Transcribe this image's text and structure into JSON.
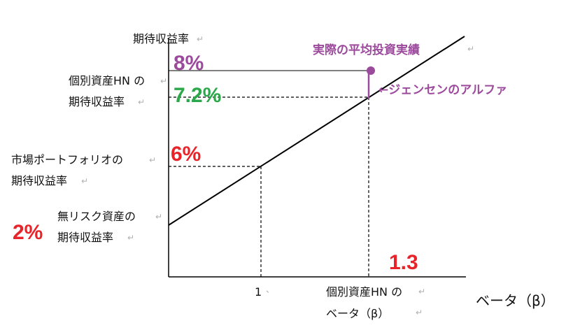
{
  "labels": {
    "y_axis_title": "期待収益率",
    "hn_label_line1": "個別資産HN の",
    "hn_label_line2": "期待収益率",
    "market_label_line1": "市場ポートフォリオの",
    "market_label_line2": "期待収益率",
    "riskfree_label_line1": "無リスク資産の",
    "riskfree_label_line2": "期待収益率",
    "x_tick_one": "1",
    "hn_beta_line1": "個別資産HN の",
    "hn_beta_line2": "ベータ（β）",
    "x_axis_title": "ベータ（β）",
    "actual_label": "実際の平均投資実績",
    "alpha_label": "←ジェンセンのアルファ"
  },
  "values": {
    "actual_return": "8%",
    "expected_hn_return": "7.2%",
    "market_return": "6%",
    "riskfree_return": "2%",
    "hn_beta": "1.3"
  },
  "colors": {
    "purple": "#9c4a9c",
    "green": "#2aa84a",
    "red": "#e8242a",
    "axis": "#000000"
  }
}
